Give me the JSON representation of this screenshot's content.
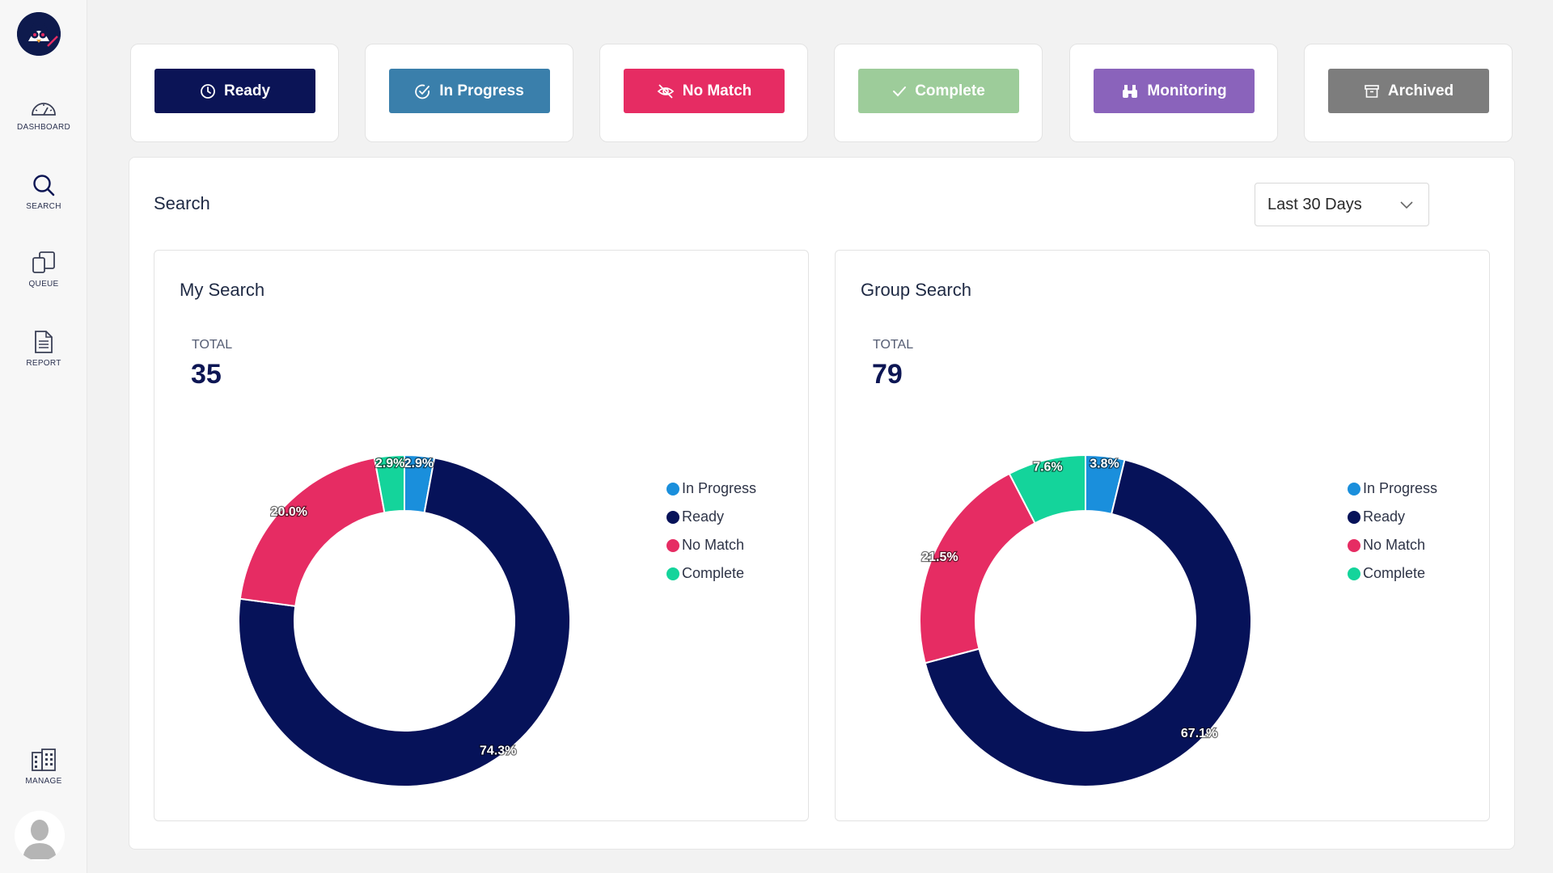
{
  "sidebar": {
    "items": [
      {
        "key": "dashboard",
        "label": "DASHBOARD",
        "icon": "gauge-icon"
      },
      {
        "key": "search",
        "label": "SEARCH",
        "icon": "search-icon"
      },
      {
        "key": "queue",
        "label": "QUEUE",
        "icon": "queue-icon"
      },
      {
        "key": "report",
        "label": "REPORT",
        "icon": "document-icon"
      },
      {
        "key": "manage",
        "label": "MANAGE",
        "icon": "building-icon"
      }
    ]
  },
  "status_buttons": [
    {
      "label": "Ready",
      "icon": "clock-icon",
      "color": "#0b1456"
    },
    {
      "label": "In Progress",
      "icon": "check-circle-icon",
      "color": "#3a7fab"
    },
    {
      "label": "No Match",
      "icon": "eye-off-icon",
      "color": "#e62c63"
    },
    {
      "label": "Complete",
      "icon": "check-icon",
      "color": "#9dcc9a"
    },
    {
      "label": "Monitoring",
      "icon": "binoculars-icon",
      "color": "#8a63bb"
    },
    {
      "label": "Archived",
      "icon": "archive-icon",
      "color": "#7d7d7d"
    }
  ],
  "panel": {
    "title": "Search",
    "range": {
      "selected": "Last 30 Days"
    }
  },
  "colors": {
    "in_progress": "#1a8fdc",
    "ready": "#061259",
    "no_match": "#e62c63",
    "complete": "#14d49b"
  },
  "chart_data": [
    {
      "type": "pie",
      "title": "My Search",
      "total_label": "TOTAL",
      "total": "35",
      "categories": [
        "In Progress",
        "Ready",
        "No Match",
        "Complete"
      ],
      "values": [
        2.9,
        74.3,
        20.0,
        2.9
      ],
      "labels": [
        "2.9%",
        "74.3%",
        "20.0%",
        "2.9%"
      ],
      "legend": "right"
    },
    {
      "type": "pie",
      "title": "Group Search",
      "total_label": "TOTAL",
      "total": "79",
      "categories": [
        "In Progress",
        "Ready",
        "No Match",
        "Complete"
      ],
      "values": [
        3.8,
        67.1,
        21.5,
        7.6
      ],
      "labels": [
        "3.8%",
        "67.1%",
        "21.5%",
        "7.6%"
      ],
      "legend": "right"
    }
  ]
}
